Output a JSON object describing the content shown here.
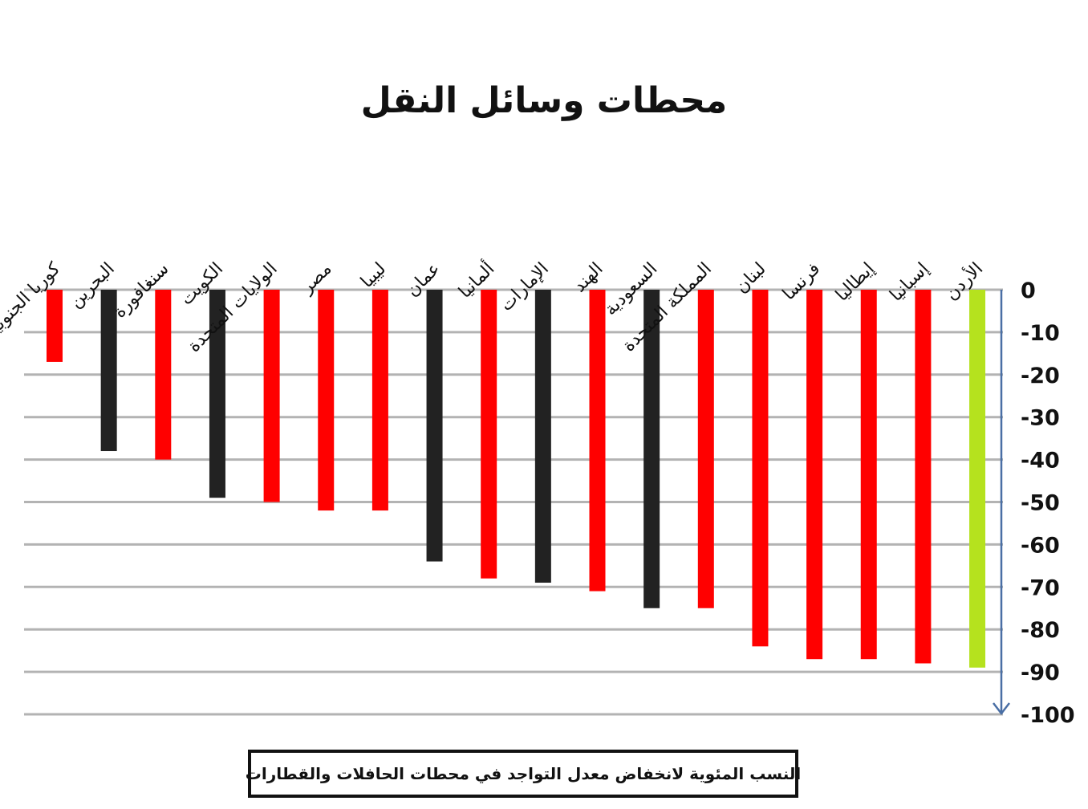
{
  "chart_data": {
    "type": "bar",
    "title": "محطات وسائل النقل",
    "caption": "النسب المئوية لانخفاض معدل التواجد في محطات الحافلات والقطارات",
    "categories": [
      "كوريا الجنوبية",
      "البحرين",
      "سنغافورة",
      "الكويت",
      "الولايات المتحدة",
      "مصر",
      "ليبيا",
      "عمان",
      "ألمانيا",
      "الإمارات",
      "الهند",
      "السعودية",
      "المملكة المتحدة",
      "لبنان",
      "فرنسا",
      "إيطاليا",
      "إسبانيا",
      "الأردن"
    ],
    "values": [
      -17,
      -38,
      -40,
      -49,
      -50,
      -52,
      -52,
      -64,
      -68,
      -69,
      -71,
      -75,
      -75,
      -84,
      -87,
      -87,
      -88,
      -89
    ],
    "bar_colors": [
      "#ff0000",
      "#222222",
      "#ff0000",
      "#222222",
      "#ff0000",
      "#ff0000",
      "#ff0000",
      "#222222",
      "#ff0000",
      "#222222",
      "#ff0000",
      "#222222",
      "#ff0000",
      "#ff0000",
      "#ff0000",
      "#ff0000",
      "#ff0000",
      "#b5e21e"
    ],
    "ylim": [
      -100,
      0
    ],
    "y_ticks": [
      "0",
      "-10",
      "-20",
      "-30",
      "-40",
      "-50",
      "-60",
      "-70",
      "-80",
      "-90",
      "-100"
    ],
    "y_axis_side": "right",
    "y_axis_direction": "downward arrow",
    "grid": true,
    "gridline_color": "#b3b3b3",
    "axis_color": "#4a6fa5"
  }
}
